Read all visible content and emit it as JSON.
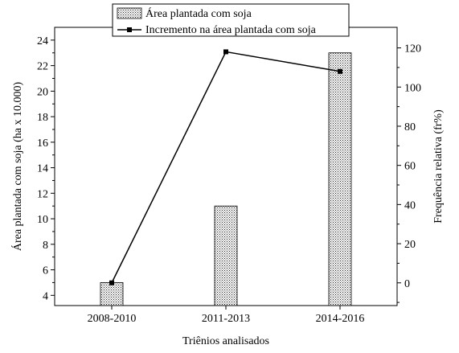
{
  "chart_data": {
    "type": "bar+line",
    "categories": [
      "2008-2010",
      "2011-2013",
      "2014-2016"
    ],
    "xlabel": "Triênios analisados",
    "ylabel": "Área plantada com soja (ha x 10.000)",
    "y2label": "Frequência relativa (fr%)",
    "ylim": [
      3.2,
      25
    ],
    "yticks": [
      4,
      6,
      8,
      10,
      12,
      14,
      16,
      18,
      20,
      22,
      24
    ],
    "y2lim": [
      -11.6,
      130.5
    ],
    "y2ticks": [
      0,
      20,
      40,
      60,
      80,
      100,
      120
    ],
    "series": [
      {
        "name": "Área plantada com soja",
        "type": "bar",
        "axis": "left",
        "values": [
          5.0,
          11.0,
          23.0
        ]
      },
      {
        "name": "Incremento na área plantada com soja",
        "type": "line",
        "axis": "right",
        "values": [
          0,
          118,
          108
        ]
      }
    ],
    "legend": "top-center",
    "grid": false
  }
}
